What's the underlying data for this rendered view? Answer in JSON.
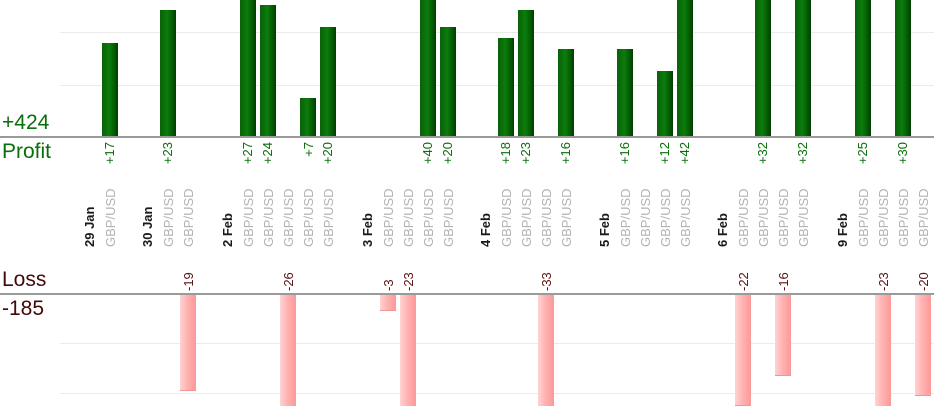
{
  "chart_data": {
    "type": "bar",
    "description": "Daily trade profit/loss bar chart, one bar per trade, grouped by date",
    "profit_axis": {
      "label": "Profit",
      "total": "+424"
    },
    "loss_axis": {
      "label": "Loss",
      "total": "-185"
    },
    "groups": [
      {
        "date": "29 Jan",
        "trades": [
          {
            "symbol": "GBP/USD",
            "value": 17,
            "label": "+17"
          }
        ]
      },
      {
        "date": "30 Jan",
        "trades": [
          {
            "symbol": "GBP/USD",
            "value": 23,
            "label": "+23"
          },
          {
            "symbol": "GBP/USD",
            "value": -19,
            "label": "-19"
          }
        ]
      },
      {
        "date": "2 Feb",
        "trades": [
          {
            "symbol": "GBP/USD",
            "value": 27,
            "label": "+27"
          },
          {
            "symbol": "GBP/USD",
            "value": 24,
            "label": "+24"
          },
          {
            "symbol": "GBP/USD",
            "value": -26,
            "label": "-26"
          },
          {
            "symbol": "GBP/USD",
            "value": 7,
            "label": "+7"
          },
          {
            "symbol": "GBP/USD",
            "value": 20,
            "label": "+20"
          }
        ]
      },
      {
        "date": "3 Feb",
        "trades": [
          {
            "symbol": "GBP/USD",
            "value": -3,
            "label": "-3"
          },
          {
            "symbol": "GBP/USD",
            "value": -23,
            "label": "-23"
          },
          {
            "symbol": "GBP/USD",
            "value": 40,
            "label": "+40"
          },
          {
            "symbol": "GBP/USD",
            "value": 20,
            "label": "+20"
          }
        ]
      },
      {
        "date": "4 Feb",
        "trades": [
          {
            "symbol": "GBP/USD",
            "value": 18,
            "label": "+18"
          },
          {
            "symbol": "GBP/USD",
            "value": 23,
            "label": "+23"
          },
          {
            "symbol": "GBP/USD",
            "value": -33,
            "label": "-33"
          },
          {
            "symbol": "GBP/USD",
            "value": 16,
            "label": "+16"
          }
        ]
      },
      {
        "date": "5 Feb",
        "trades": [
          {
            "symbol": "GBP/USD",
            "value": 16,
            "label": "+16"
          },
          {
            "symbol": "GBP/USD",
            "value": 0,
            "label": ""
          },
          {
            "symbol": "GBP/USD",
            "value": 12,
            "label": "+12"
          },
          {
            "symbol": "GBP/USD",
            "value": 42,
            "label": "+42"
          }
        ]
      },
      {
        "date": "6 Feb",
        "trades": [
          {
            "symbol": "GBP/USD",
            "value": -22,
            "label": "-22"
          },
          {
            "symbol": "GBP/USD",
            "value": 32,
            "label": "+32"
          },
          {
            "symbol": "GBP/USD",
            "value": -16,
            "label": "-16"
          },
          {
            "symbol": "GBP/USD",
            "value": 32,
            "label": "+32"
          }
        ]
      },
      {
        "date": "9 Feb",
        "trades": [
          {
            "symbol": "GBP/USD",
            "value": 25,
            "label": "+25"
          },
          {
            "symbol": "GBP/USD",
            "value": -23,
            "label": "-23"
          },
          {
            "symbol": "GBP/USD",
            "value": 30,
            "label": "+30"
          },
          {
            "symbol": "GBP/USD",
            "value": -20,
            "label": "-20"
          }
        ]
      }
    ],
    "colors": {
      "profit_bar": "#0b7d0b",
      "loss_bar": "#ffb0b0",
      "profit_text": "#0a6e0a",
      "loss_value_text": "#5c1111",
      "loss_label_text": "#450808",
      "date_text": "#1a1a1a",
      "symbol_text": "#b3b3b3",
      "axis_line": "#9a9a9a",
      "gridline": "#ebebeb"
    }
  }
}
